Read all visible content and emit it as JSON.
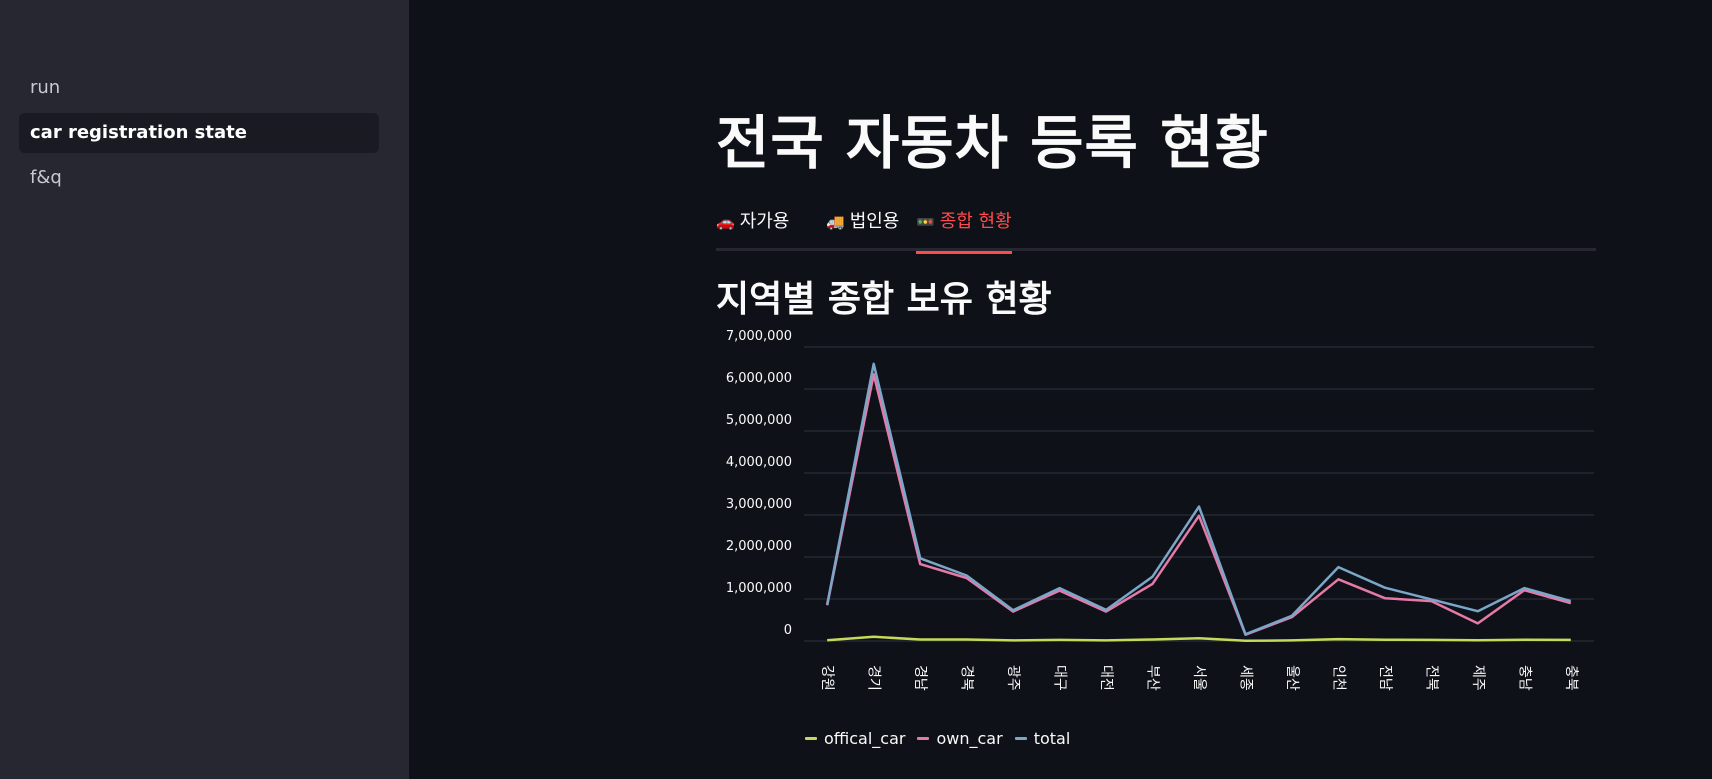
{
  "sidebar": {
    "items": [
      {
        "label": "run",
        "active": false
      },
      {
        "label": "car registration state",
        "active": true
      },
      {
        "label": "f&q",
        "active": false
      }
    ]
  },
  "main": {
    "title": "전국 자동차 등록 현황",
    "tabs": [
      {
        "emoji": "🚗",
        "label": "자가용",
        "active": false
      },
      {
        "emoji": "🚚",
        "label": "법인용",
        "active": false
      },
      {
        "emoji": "🚥",
        "label": "종합 현황",
        "active": true
      }
    ],
    "section_title": "지역별 종합 보유 현황"
  },
  "chart_data": {
    "type": "line",
    "x": [
      "강원",
      "경기",
      "경남",
      "경북",
      "광주",
      "대구",
      "대전",
      "부산",
      "서울",
      "세종",
      "울산",
      "인천",
      "전남",
      "전북",
      "제주",
      "충남",
      "충북"
    ],
    "series": [
      {
        "name": "offical_car",
        "color": "#c5d95b",
        "values": [
          20000,
          100000,
          35000,
          35000,
          15000,
          25000,
          15000,
          35000,
          65000,
          5000,
          15000,
          45000,
          30000,
          25000,
          20000,
          30000,
          25000
        ]
      },
      {
        "name": "own_car",
        "color": "#e57aa9",
        "values": [
          850000,
          6350000,
          1830000,
          1500000,
          700000,
          1200000,
          700000,
          1360000,
          2980000,
          150000,
          570000,
          1470000,
          1020000,
          950000,
          420000,
          1210000,
          900000
        ]
      },
      {
        "name": "total",
        "color": "#7aa6c8",
        "values": [
          870000,
          6600000,
          1970000,
          1560000,
          730000,
          1260000,
          740000,
          1530000,
          3200000,
          160000,
          600000,
          1760000,
          1270000,
          990000,
          710000,
          1260000,
          950000
        ]
      }
    ],
    "y_ticks": [
      "0",
      "1,000,000",
      "2,000,000",
      "3,000,000",
      "4,000,000",
      "5,000,000",
      "6,000,000",
      "7,000,000"
    ],
    "ylim": [
      0,
      7000000
    ],
    "grid": true,
    "legend": "bottom-left"
  }
}
